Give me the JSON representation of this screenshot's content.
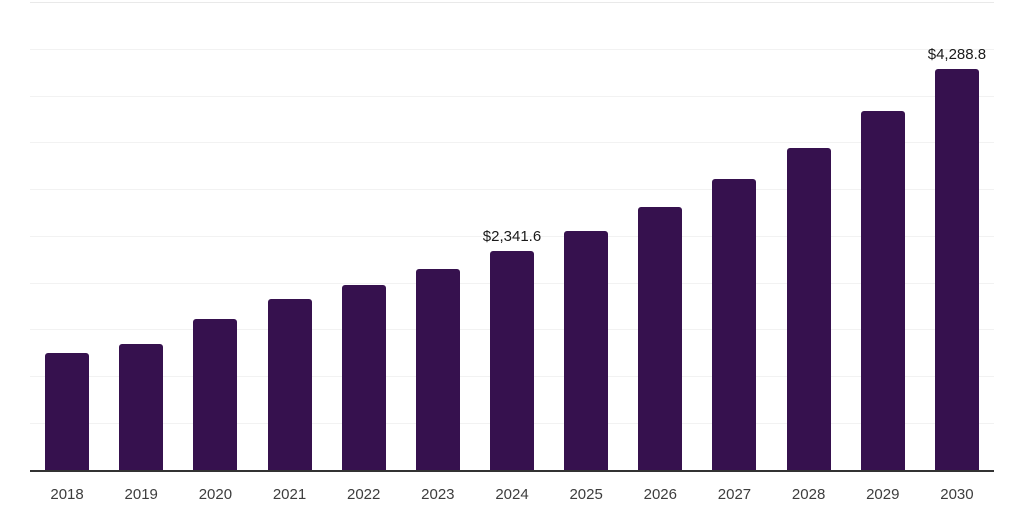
{
  "chart_data": {
    "type": "bar",
    "title": "",
    "xlabel": "",
    "ylabel": "",
    "categories": [
      "2018",
      "2019",
      "2020",
      "2021",
      "2022",
      "2023",
      "2024",
      "2025",
      "2026",
      "2027",
      "2028",
      "2029",
      "2030"
    ],
    "values": [
      1250,
      1350,
      1615,
      1830,
      1975,
      2150,
      2341.6,
      2560,
      2810,
      3110,
      3440,
      3835,
      4288.8
    ],
    "data_labels": [
      {
        "category": "2024",
        "text": "$2,341.6"
      },
      {
        "category": "2030",
        "text": "$4,288.8"
      }
    ],
    "ylim": [
      0,
      5000
    ],
    "gridline_interval": 500,
    "grid": true,
    "legend": "none",
    "bar_color": "#36114E",
    "axis_line_color": "#333333",
    "gridline_color": "#f2f2f2"
  }
}
